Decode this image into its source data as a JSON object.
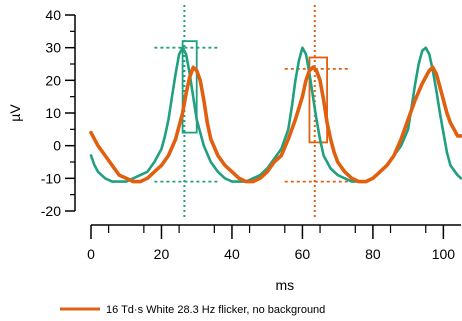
{
  "chart_data": {
    "type": "line",
    "xlabel": "ms",
    "ylabel": "µV",
    "xlim": [
      0,
      105
    ],
    "ylim": [
      -20,
      40
    ],
    "x_ticks": [
      0,
      20,
      40,
      60,
      80,
      100
    ],
    "y_ticks": [
      -20,
      -10,
      0,
      10,
      20,
      30,
      40
    ],
    "legend": {
      "position": "bottom-left",
      "entries": [
        "16 Td·s White 28.3 Hz flicker, no background"
      ]
    },
    "colors": {
      "orange": "#e06010",
      "teal": "#20a080"
    },
    "series": [
      {
        "name": "16 Td·s White 28.3 Hz flicker, no background",
        "color": "#e06010",
        "x": [
          0,
          2,
          4,
          6,
          8,
          10,
          12,
          14,
          16,
          18,
          20,
          22,
          24,
          26,
          27,
          28,
          29,
          30,
          31,
          32,
          33,
          34,
          36,
          38,
          40,
          42,
          44,
          46,
          48,
          50,
          52,
          54,
          56,
          58,
          60,
          61,
          62,
          63,
          64,
          65,
          66,
          67,
          68,
          69,
          70,
          72,
          74,
          76,
          78,
          80,
          82,
          84,
          86,
          88,
          90,
          92,
          94,
          96,
          97,
          98,
          99,
          100,
          101,
          102,
          103,
          104,
          105
        ],
        "y": [
          4,
          0,
          -3,
          -6,
          -9,
          -10,
          -11,
          -11,
          -10,
          -8,
          -6,
          -3,
          2,
          10,
          16,
          21,
          24,
          23,
          20,
          14,
          7,
          2,
          -3,
          -6,
          -8,
          -10,
          -11,
          -11,
          -10,
          -8,
          -5,
          -3,
          2,
          8,
          15,
          20,
          23,
          24,
          23,
          20,
          14,
          7,
          2,
          -2,
          -5,
          -8,
          -10,
          -11,
          -11,
          -10,
          -8,
          -6,
          -3,
          2,
          8,
          14,
          19,
          23,
          24,
          22,
          18,
          14,
          10,
          7,
          5,
          3,
          3
        ]
      },
      {
        "name": "",
        "color": "#20a080",
        "x": [
          0,
          1,
          2,
          4,
          6,
          8,
          10,
          12,
          14,
          16,
          18,
          20,
          21,
          22,
          23,
          24,
          25,
          26,
          27,
          28,
          29,
          30,
          32,
          34,
          36,
          38,
          40,
          42,
          44,
          46,
          48,
          50,
          52,
          54,
          56,
          57,
          58,
          59,
          60,
          61,
          62,
          63,
          64,
          65,
          66,
          68,
          70,
          72,
          74,
          76,
          78,
          80,
          82,
          84,
          86,
          88,
          90,
          91,
          92,
          93,
          94,
          95,
          96,
          97,
          98,
          99,
          100,
          101,
          102,
          104,
          105
        ],
        "y": [
          -3,
          -6,
          -8,
          -10,
          -11,
          -11,
          -11,
          -10,
          -9,
          -8,
          -5,
          -1,
          3,
          8,
          15,
          22,
          28,
          30,
          28,
          22,
          15,
          8,
          0,
          -5,
          -8,
          -10,
          -11,
          -11,
          -11,
          -10,
          -9,
          -7,
          -4,
          -1,
          5,
          12,
          20,
          26,
          30,
          28,
          22,
          15,
          8,
          2,
          -3,
          -7,
          -9,
          -10,
          -11,
          -11,
          -11,
          -10,
          -8,
          -6,
          -3,
          0,
          5,
          12,
          19,
          25,
          29,
          30,
          28,
          23,
          17,
          10,
          4,
          -2,
          -6,
          -9,
          -10
        ]
      }
    ],
    "markers": [
      {
        "color": "#20a080",
        "vline_x": 26.5,
        "hline_top_y": 30,
        "hline_bottom_y": -11,
        "box": {
          "x0": 26,
          "x1": 30,
          "y0": 4,
          "y1": 32
        }
      },
      {
        "color": "#e06010",
        "vline_x": 63.5,
        "hline_top_y": 23.5,
        "hline_bottom_y": -11,
        "box": {
          "x0": 62,
          "x1": 67,
          "y0": 1,
          "y1": 27
        }
      }
    ]
  }
}
